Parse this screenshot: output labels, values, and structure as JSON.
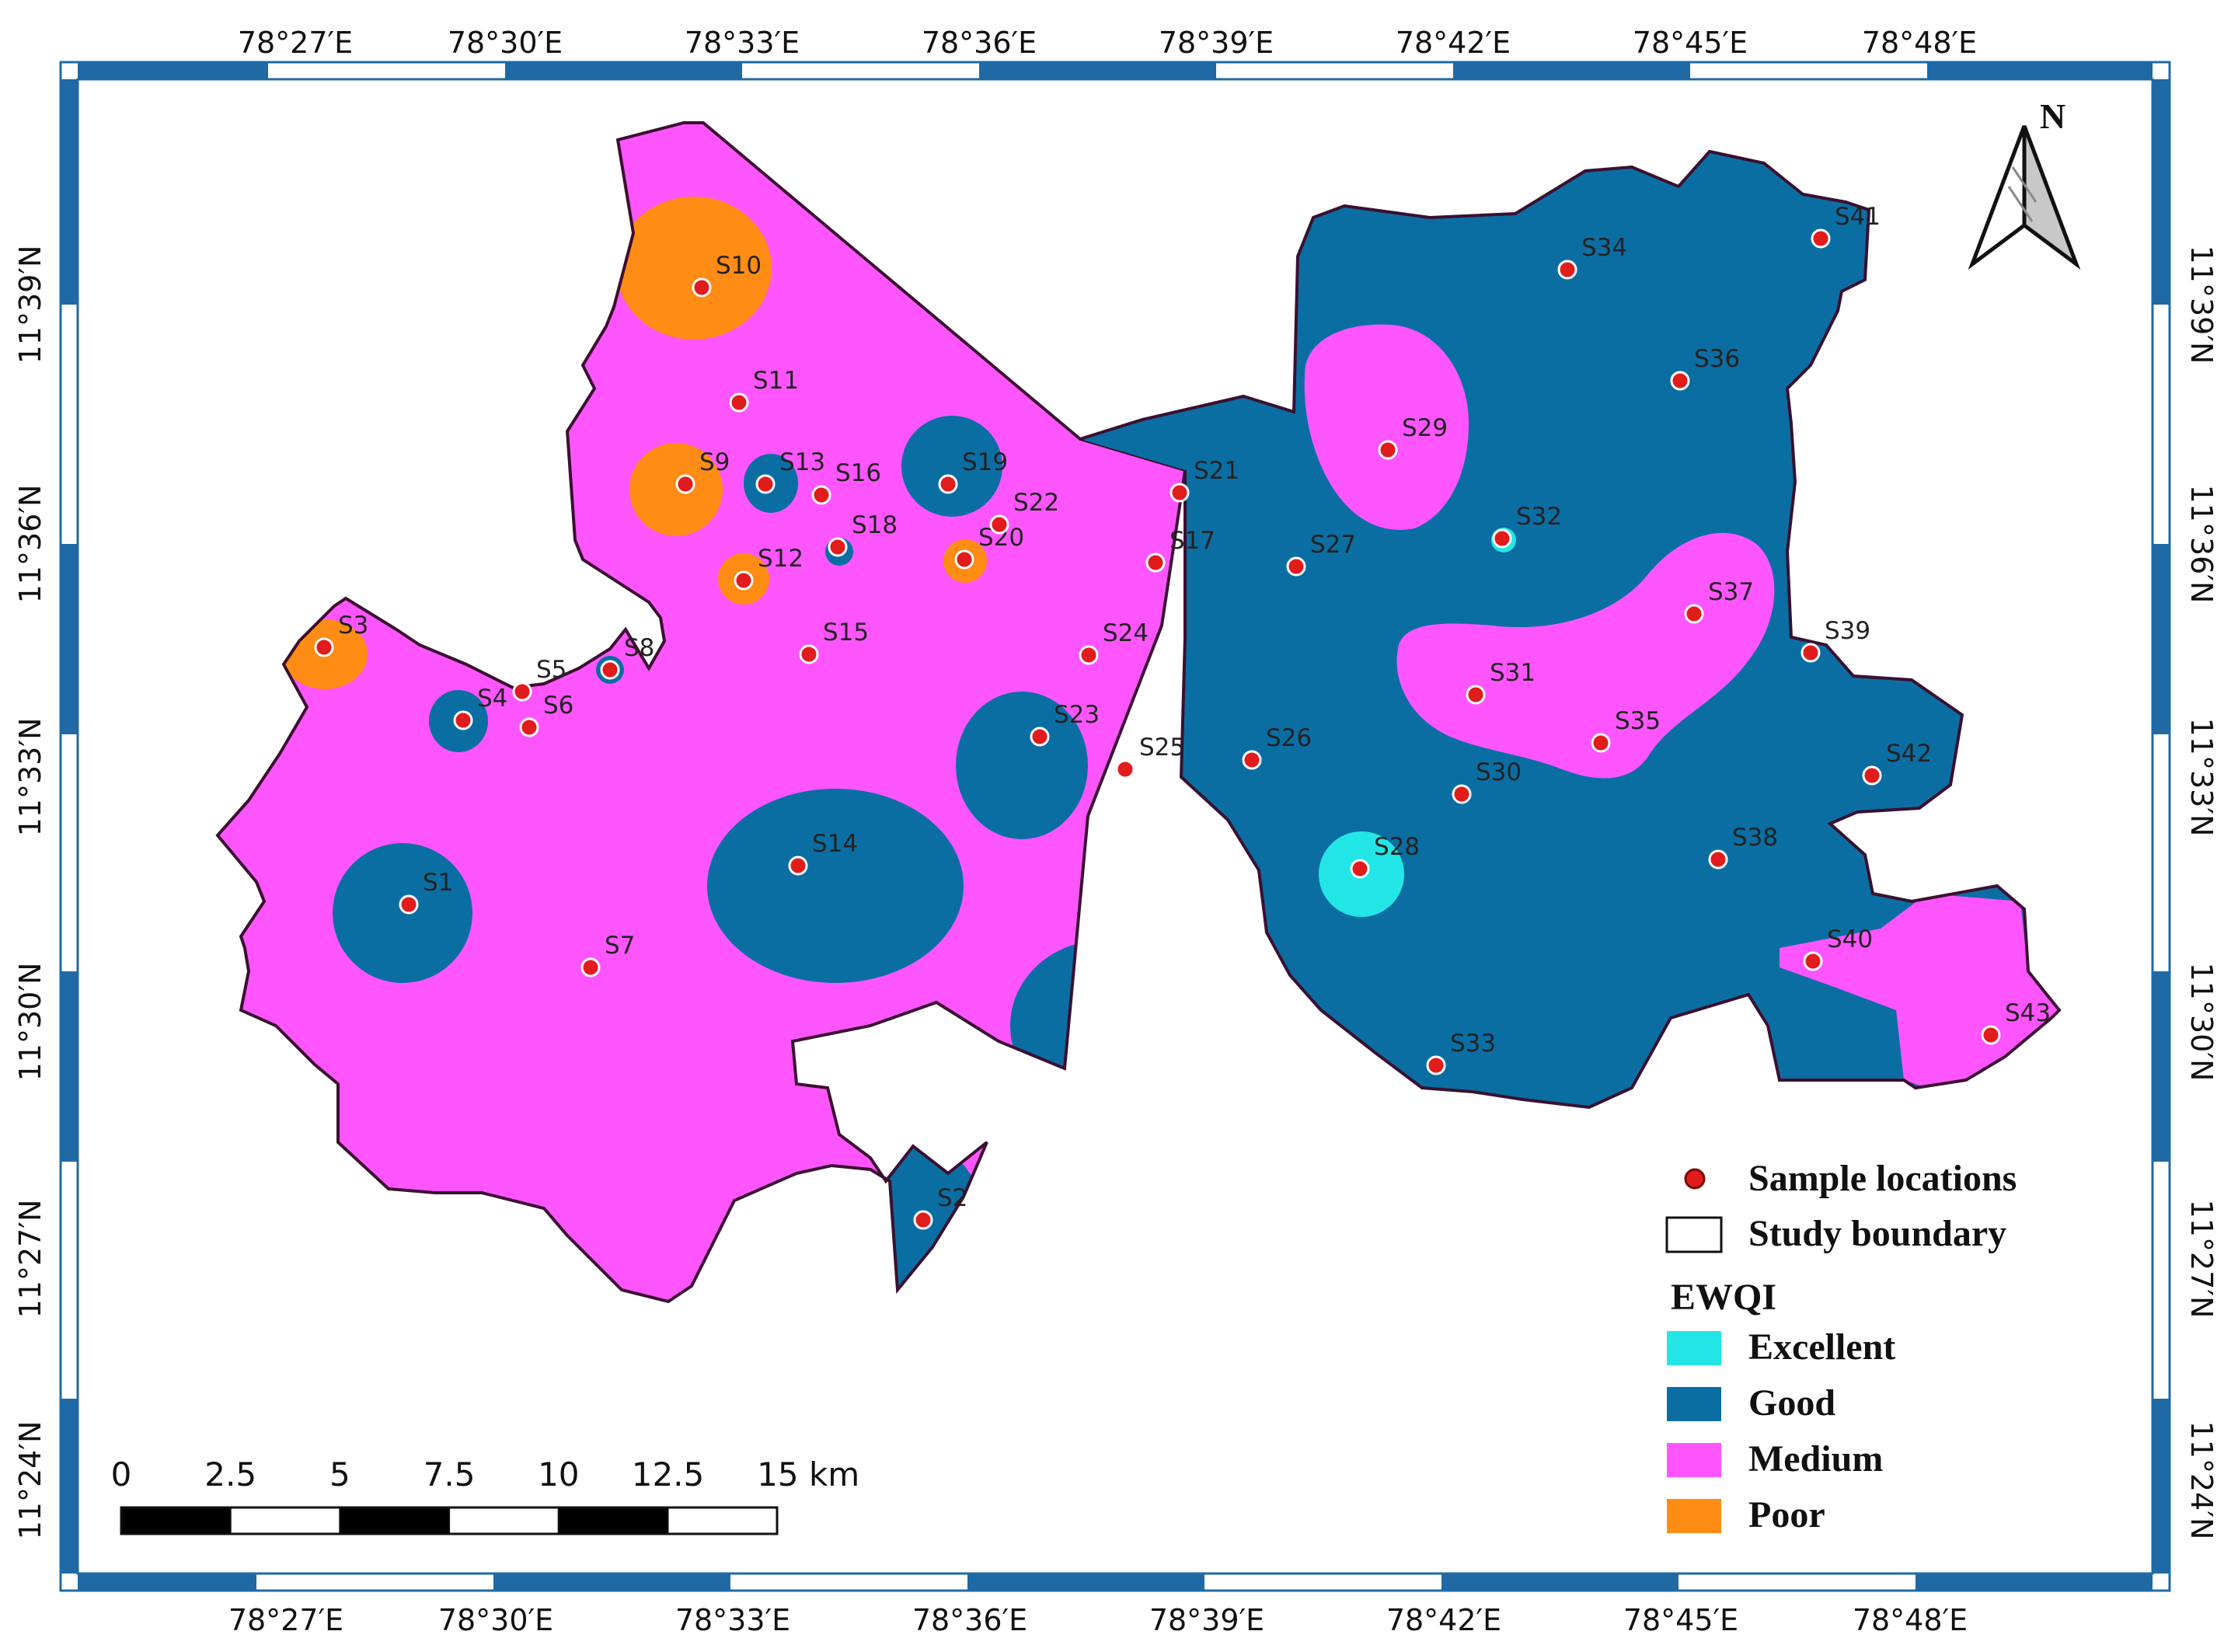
{
  "longitude_labels": [
    "78°27′E",
    "78°30′E",
    "78°33′E",
    "78°36′E",
    "78°39′E",
    "78°42′E",
    "78°45′E",
    "78°48′E"
  ],
  "latitude_labels": [
    "11°39′N",
    "11°36′N",
    "11°33′N",
    "11°30′N",
    "11°27′N",
    "11°24′N"
  ],
  "north_arrow": {
    "label": "N"
  },
  "legend": {
    "sample_locations": "Sample locations",
    "study_boundary": "Study boundary",
    "ewqi_title": "EWQI",
    "classes": [
      {
        "label": "Excellent",
        "color": "#22e6e6"
      },
      {
        "label": "Good",
        "color": "#0b6ea3"
      },
      {
        "label": "Medium",
        "color": "#ff55ff"
      },
      {
        "label": "Poor",
        "color": "#ff8c14"
      }
    ]
  },
  "scale_bar": {
    "ticks": [
      "0",
      "2.5",
      "5",
      "7.5",
      "10",
      "12.5",
      "15 km"
    ]
  },
  "samples": [
    "S1",
    "S2",
    "S3",
    "S4",
    "S5",
    "S6",
    "S7",
    "S8",
    "S9",
    "S10",
    "S11",
    "S12",
    "S13",
    "S14",
    "S15",
    "S16",
    "S17",
    "S18",
    "S19",
    "S20",
    "S21",
    "S22",
    "S23",
    "S24",
    "S25",
    "S26",
    "S27",
    "S28",
    "S29",
    "S30",
    "S31",
    "S32",
    "S33",
    "S34",
    "S35",
    "S36",
    "S37",
    "S38",
    "S39",
    "S40",
    "S41",
    "S42",
    "S43"
  ],
  "colors": {
    "frame_blue": "#1f6aa5",
    "sample_dot": "#e01c1c",
    "boundary": "#3a1030"
  }
}
